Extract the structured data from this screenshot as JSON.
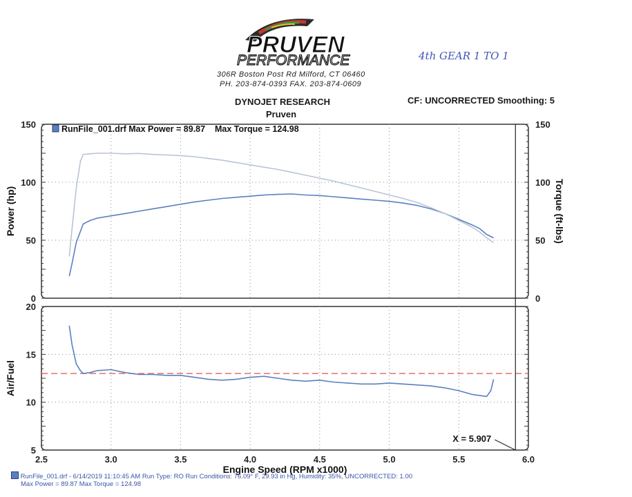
{
  "header": {
    "brand_line1": "PRUVEN",
    "brand_line2": "PERFORMANCE",
    "address": "306R Boston Post Rd   Milford, CT  06460",
    "phone_fax": "PH. 203-874-0393    FAX. 203-874-0609",
    "title": "DYNOJET RESEARCH",
    "subtitle": "Pruven",
    "cf_info": "CF: UNCORRECTED  Smoothing: 5",
    "handwritten_note": "4th GEAR 1 TO 1"
  },
  "colors": {
    "power": "#5a7fc0",
    "torque": "#b8c4d6",
    "afr": "#5a7fc0",
    "target": "#e06060",
    "grid": "#888888",
    "frame": "#333333"
  },
  "chart_data": [
    {
      "type": "line",
      "legend": "RunFile_001.drf Max Power = 89.87    Max Torque = 124.98",
      "xlabel": "",
      "ylabel": "Power (hp)",
      "ylabel_right": "Torque (ft-lbs)",
      "xlim": [
        2.5,
        6.0
      ],
      "ylim": [
        0,
        150
      ],
      "yticks": [
        0,
        50,
        100,
        150
      ],
      "grid": true,
      "series": [
        {
          "name": "Power",
          "axis": "left",
          "x": [
            2.7,
            2.72,
            2.75,
            2.8,
            2.85,
            2.9,
            3.0,
            3.1,
            3.2,
            3.3,
            3.4,
            3.5,
            3.6,
            3.7,
            3.8,
            3.9,
            4.0,
            4.1,
            4.2,
            4.3,
            4.4,
            4.5,
            4.6,
            4.7,
            4.8,
            4.9,
            5.0,
            5.1,
            5.2,
            5.3,
            5.4,
            5.5,
            5.6,
            5.65,
            5.7,
            5.75
          ],
          "values": [
            19,
            30,
            48,
            64,
            67,
            69,
            71,
            73,
            75,
            77,
            79,
            81,
            83,
            84.5,
            86,
            87,
            88,
            89,
            89.5,
            89.9,
            89,
            88.5,
            87.5,
            86.5,
            85.5,
            84.5,
            83.5,
            82,
            80,
            77,
            73,
            68,
            63,
            60,
            55,
            52
          ]
        },
        {
          "name": "Torque",
          "axis": "right",
          "x": [
            2.7,
            2.72,
            2.75,
            2.78,
            2.8,
            2.85,
            2.9,
            3.0,
            3.1,
            3.2,
            3.3,
            3.4,
            3.5,
            3.6,
            3.7,
            3.8,
            3.9,
            4.0,
            4.1,
            4.2,
            4.3,
            4.4,
            4.5,
            4.6,
            4.7,
            4.8,
            4.9,
            5.0,
            5.1,
            5.2,
            5.3,
            5.4,
            5.5,
            5.6,
            5.65,
            5.7,
            5.75
          ],
          "values": [
            36,
            60,
            95,
            118,
            124,
            124.5,
            125,
            124.98,
            124.5,
            124.8,
            124,
            123.5,
            123,
            122,
            120.5,
            119,
            117,
            115,
            113,
            111,
            108.5,
            106,
            103.5,
            101,
            98,
            95,
            92,
            89,
            86,
            82.5,
            78,
            73,
            67,
            61,
            57,
            52,
            48
          ]
        }
      ]
    },
    {
      "type": "line",
      "xlabel": "Engine Speed (RPM x1000)",
      "ylabel": "Air/Fuel",
      "xlim": [
        2.5,
        6.0
      ],
      "ylim": [
        5,
        20
      ],
      "xticks": [
        2.5,
        3.0,
        3.5,
        4.0,
        4.5,
        5.0,
        5.5,
        6.0
      ],
      "yticks": [
        5,
        10,
        15,
        20
      ],
      "grid": true,
      "reference_line": 13.0,
      "cursor_label": "X = 5.907",
      "cursor_x": 5.907,
      "series": [
        {
          "name": "Air/Fuel",
          "x": [
            2.7,
            2.72,
            2.75,
            2.78,
            2.8,
            2.85,
            2.9,
            3.0,
            3.1,
            3.2,
            3.3,
            3.4,
            3.5,
            3.6,
            3.7,
            3.8,
            3.9,
            4.0,
            4.1,
            4.2,
            4.3,
            4.4,
            4.5,
            4.6,
            4.7,
            4.8,
            4.9,
            5.0,
            5.1,
            5.2,
            5.3,
            5.4,
            5.5,
            5.6,
            5.7,
            5.73,
            5.75
          ],
          "values": [
            18,
            16,
            14,
            13.3,
            13.0,
            13.1,
            13.3,
            13.4,
            13.1,
            12.9,
            12.9,
            12.8,
            12.8,
            12.6,
            12.4,
            12.3,
            12.4,
            12.6,
            12.7,
            12.5,
            12.3,
            12.2,
            12.3,
            12.1,
            12.0,
            11.9,
            11.9,
            12.0,
            11.9,
            11.8,
            11.7,
            11.5,
            11.2,
            10.8,
            10.6,
            11.2,
            12.4
          ]
        }
      ]
    }
  ],
  "footer": {
    "line1": "RunFile_001.drf - 6/14/2019 11:10:45 AM  Run Type: RO  Run Conditions: 76.09° F, 29.93 in Hg, Humidity: 35%, UNCORRECTED: 1.00",
    "line2": "Max Power = 89.87  Max Torque = 124.98"
  }
}
